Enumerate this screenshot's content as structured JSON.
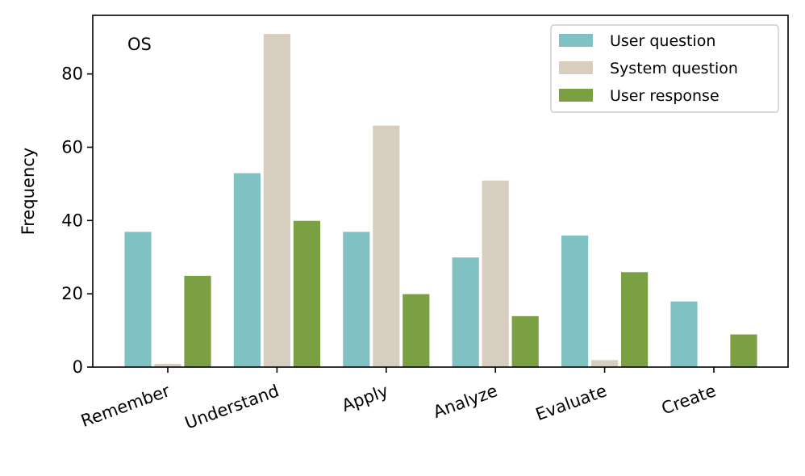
{
  "chart_data": {
    "type": "bar",
    "title": "",
    "panel_label": "OS",
    "xlabel": "",
    "ylabel": "Frequency",
    "ylim": [
      0,
      96
    ],
    "yticks": [
      0,
      20,
      40,
      60,
      80
    ],
    "grid": false,
    "legend_position": "top-right",
    "categories": [
      "Remember",
      "Understand",
      "Apply",
      "Analyze",
      "Evaluate",
      "Create"
    ],
    "series": [
      {
        "name": "User question",
        "color": "#80c1c4",
        "values": [
          37,
          53,
          37,
          30,
          36,
          18
        ]
      },
      {
        "name": "System question",
        "color": "#d8cebf",
        "values": [
          1,
          91,
          66,
          51,
          2,
          0
        ]
      },
      {
        "name": "User response",
        "color": "#7aa043",
        "values": [
          25,
          40,
          20,
          14,
          26,
          9
        ]
      }
    ]
  }
}
